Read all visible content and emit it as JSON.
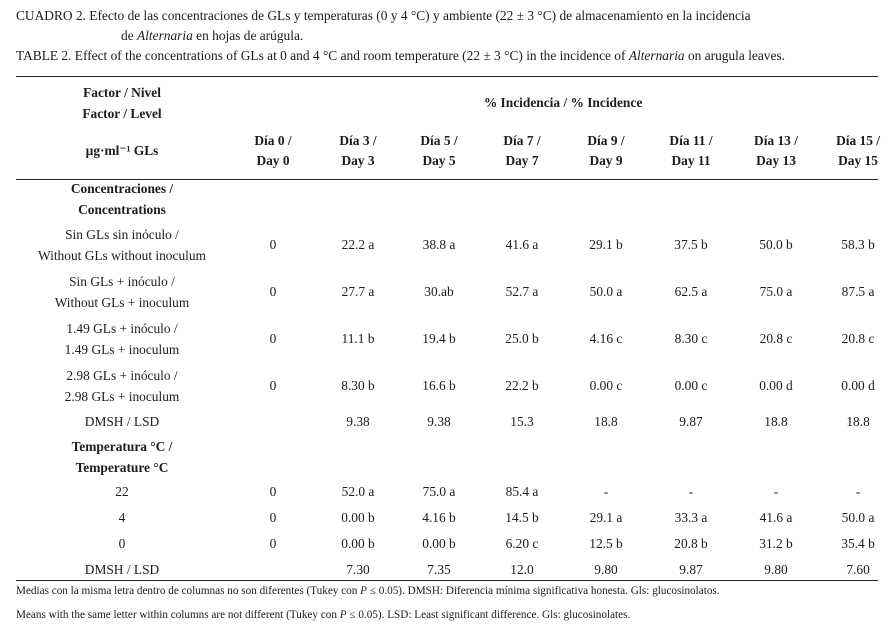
{
  "caption": {
    "es_line1": "CUADRO 2. Efecto de las concentraciones de GLs y temperaturas (0 y 4 °C) y ambiente (22 ± 3 °C) de almacenamiento en la incidencia",
    "es_line2_pre": "de ",
    "es_line2_italic": "Alternaria",
    "es_line2_post": " en hojas de arúgula.",
    "en_pre": "TABLE 2. Effect of the concentrations of GLs at 0 and 4 °C and room temperature (22 ± 3 °C) in the incidence of ",
    "en_italic": "Alternaria",
    "en_post": " on arugula leaves."
  },
  "header": {
    "factor_es": "Factor / Nivel",
    "factor_en": "Factor / Level",
    "unit": "µg·ml⁻¹ GLs",
    "incidence": "%  Incidencia / %  Incidence",
    "days": [
      {
        "es": "Día 0 /",
        "en": "Day 0"
      },
      {
        "es": "Día 3 /",
        "en": "Day 3"
      },
      {
        "es": "Día 5 /",
        "en": "Day 5"
      },
      {
        "es": "Día 7 /",
        "en": "Day 7"
      },
      {
        "es": "Día 9 /",
        "en": "Day 9"
      },
      {
        "es": "Día 11 /",
        "en": "Day 11"
      },
      {
        "es": "Día 13 /",
        "en": "Day 13"
      },
      {
        "es": "Día 15 /",
        "en": "Day 15"
      }
    ]
  },
  "sections": {
    "concentrations": {
      "es": "Concentraciones /",
      "en": "Concentrations"
    },
    "temperature": {
      "es": "Temperatura °C /",
      "en": "Temperature °C"
    }
  },
  "conc_rows": [
    {
      "label1": "Sin GLs sin inóculo /",
      "label2": "Without GLs without inoculum",
      "values": [
        "0",
        "22.2 a",
        "38.8 a",
        "41.6 a",
        "29.1 b",
        "37.5 b",
        "50.0 b",
        "58.3 b"
      ]
    },
    {
      "label1": "Sin GLs + inóculo /",
      "label2": "Without GLs + inoculum",
      "values": [
        "0",
        "27.7 a",
        "30.ab",
        "52.7 a",
        "50.0 a",
        "62.5 a",
        "75.0 a",
        "87.5 a"
      ]
    },
    {
      "label1": "1.49 GLs + inóculo /",
      "label2": "1.49 GLs + inoculum",
      "values": [
        "0",
        "11.1 b",
        "19.4 b",
        "25.0 b",
        "4.16 c",
        "8.30 c",
        "20.8 c",
        "20.8 c"
      ]
    },
    {
      "label1": "2.98 GLs + inóculo /",
      "label2": "2.98 GLs + inoculum",
      "values": [
        "0",
        "8.30 b",
        "16.6 b",
        "22.2 b",
        "0.00 c",
        "0.00 c",
        "0.00 d",
        "0.00 d"
      ]
    }
  ],
  "conc_lsd": {
    "label": "DMSH / LSD",
    "values": [
      "",
      "9.38",
      "9.38",
      "15.3",
      "18.8",
      "9.87",
      "18.8",
      "18.8"
    ]
  },
  "temp_rows": [
    {
      "label": "22",
      "values": [
        "0",
        "52.0 a",
        "75.0 a",
        "85.4 a",
        "-",
        "-",
        "-",
        "-"
      ]
    },
    {
      "label": "4",
      "values": [
        "0",
        "0.00 b",
        "4.16 b",
        "14.5 b",
        "29.1 a",
        "33.3 a",
        "41.6 a",
        "50.0 a"
      ]
    },
    {
      "label": "0",
      "values": [
        "0",
        "0.00 b",
        "0.00 b",
        "6.20 c",
        "12.5 b",
        "20.8 b",
        "31.2 b",
        "35.4 b"
      ]
    }
  ],
  "temp_lsd": {
    "label": "DMSH / LSD",
    "values": [
      "",
      "7.30",
      "7.35",
      "12.0",
      "9.80",
      "9.87",
      "9.80",
      "7.60"
    ]
  },
  "notes": {
    "es_pre": "Medias con la misma letra dentro de columnas no son diferentes (Tukey con ",
    "es_p": "P",
    "es_post": " ≤ 0.05). DMSH: Diferencia mínima significativa honesta. Gls: glucosinolatos.",
    "en_pre": "Means with the same letter within columns are not different (Tukey con ",
    "en_p": "P",
    "en_post": " ≤ 0.05). LSD: Least significant difference. Gls: glucosinolates."
  }
}
